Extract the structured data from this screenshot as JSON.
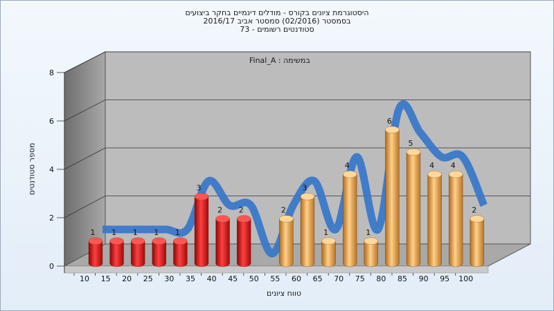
{
  "chart_data": {
    "type": "bar",
    "title_lines": [
      "היסטוגרמת ציונים בקורס - מודלים דינמיים בחקר ביצועים",
      "בסמסטר  (02/2016)  סמסטר אביב 2016/17",
      "סטודנטים רשומים - 73"
    ],
    "annotation": "במשימה : Final_A",
    "ylabel": "מספר סטודנטים",
    "xlabel": "טווח ציונים",
    "ylim": [
      0,
      8
    ],
    "yticks": [
      0,
      2,
      4,
      6,
      8
    ],
    "categories": [
      "10",
      "15",
      "20",
      "25",
      "30",
      "35",
      "40",
      "45",
      "50",
      "55",
      "60",
      "65",
      "70",
      "75",
      "80",
      "85",
      "90",
      "95",
      "100"
    ],
    "values": [
      1,
      1,
      1,
      1,
      1,
      3,
      2,
      2,
      0,
      2,
      3,
      1,
      4,
      1,
      6,
      5,
      4,
      4,
      2
    ],
    "fail_color": "#e01818",
    "pass_color": "#e8a84a",
    "curve_color": "#3a78c8",
    "fail_threshold": 55,
    "grid": true
  }
}
